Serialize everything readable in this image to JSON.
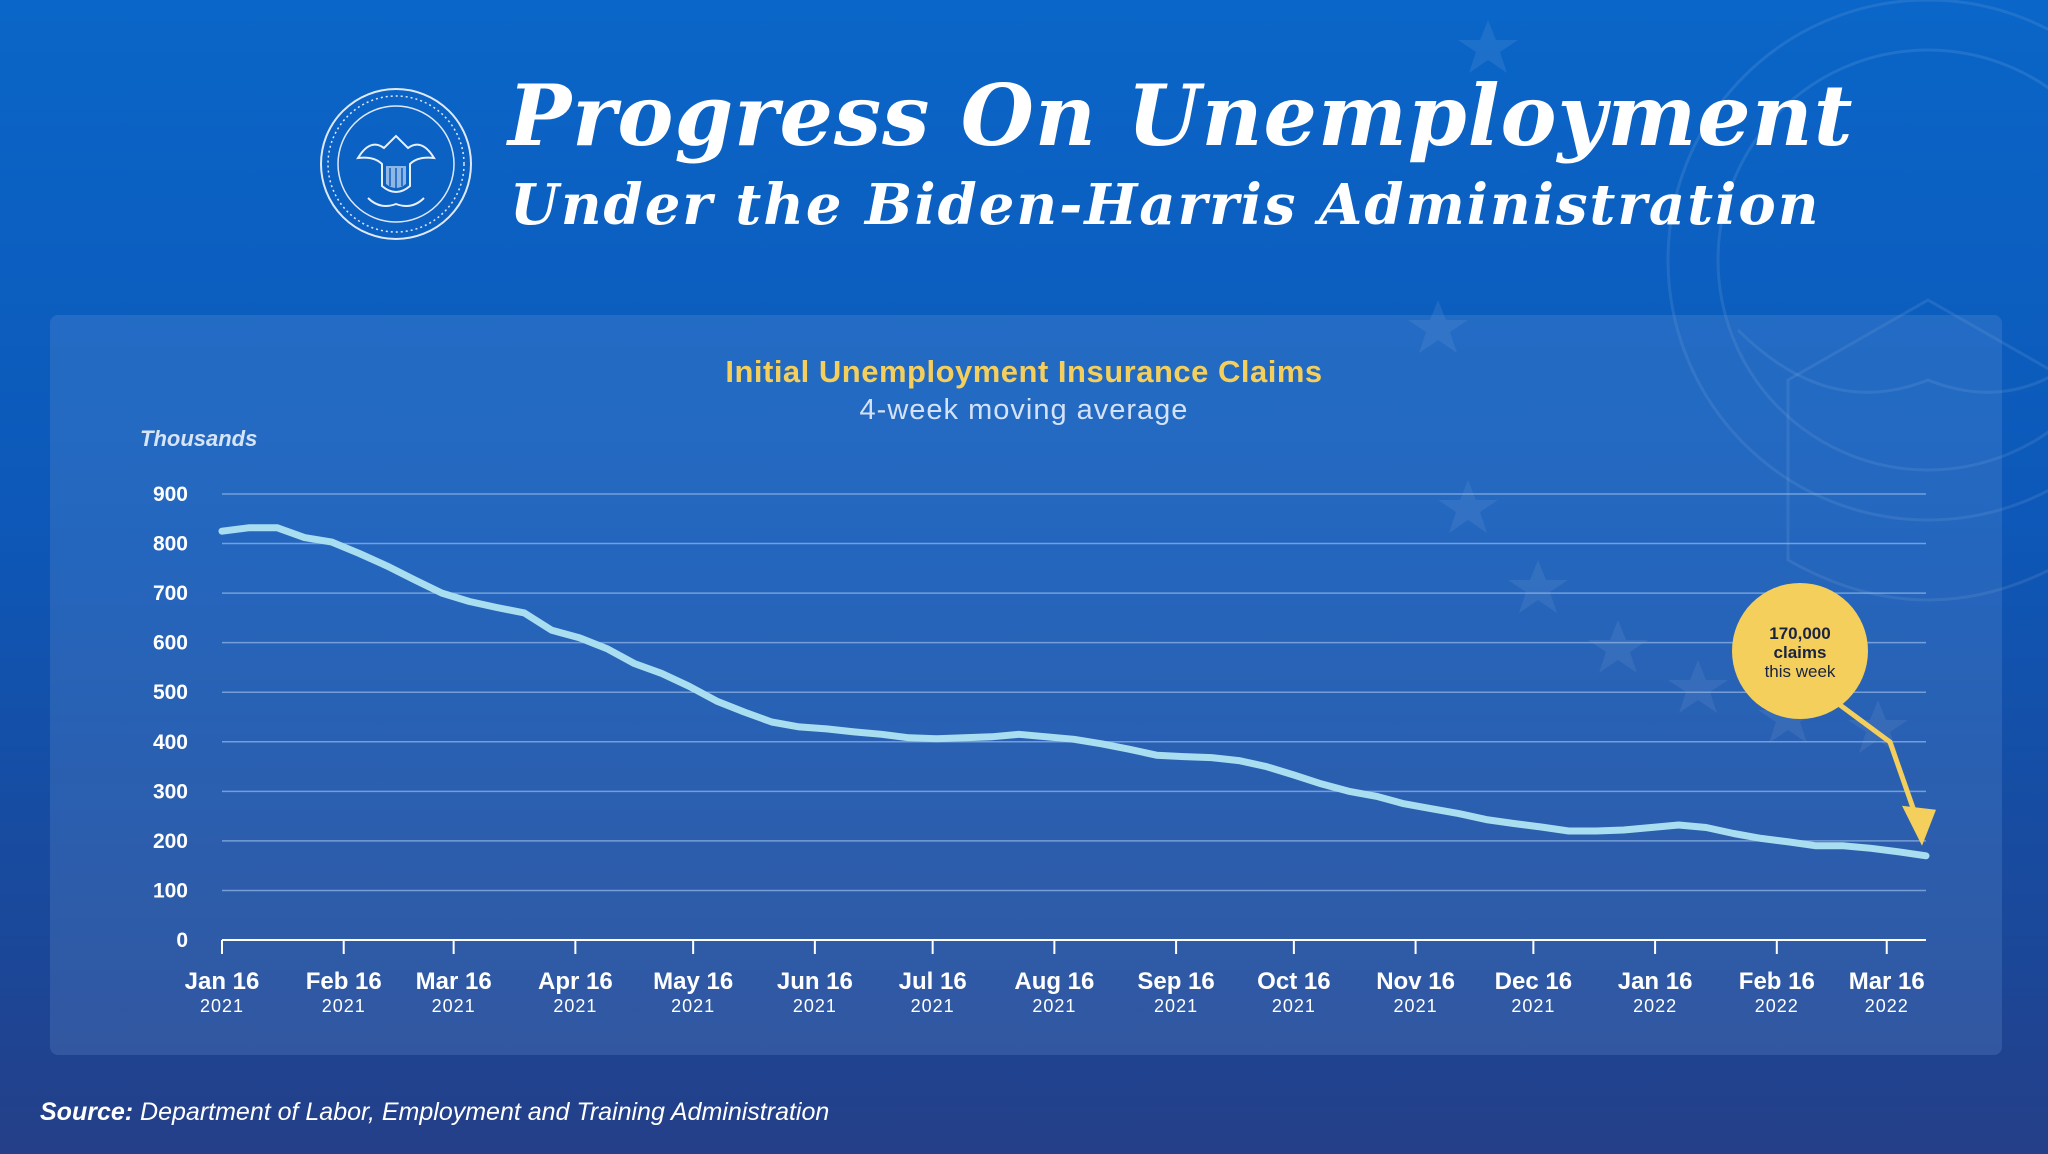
{
  "header": {
    "title": "Progress On Unemployment",
    "subtitle": "Under the Biden-Harris Administration"
  },
  "colors": {
    "line": "#a8def0",
    "accent": "#f4cf5c",
    "grid": "#8fb3e6"
  },
  "chart_data": {
    "type": "line",
    "title": "Initial Unemployment Insurance Claims",
    "subtitle": "4-week moving average",
    "ylabel": "Thousands",
    "ylim": [
      0,
      900
    ],
    "yticks": [
      "0",
      "100",
      "200",
      "300",
      "400",
      "500",
      "600",
      "700",
      "800",
      "900"
    ],
    "xticks": [
      {
        "date": "2021-01-16",
        "label": "Jan 16",
        "year": "2021"
      },
      {
        "date": "2021-02-16",
        "label": "Feb 16",
        "year": "2021"
      },
      {
        "date": "2021-03-16",
        "label": "Mar 16",
        "year": "2021"
      },
      {
        "date": "2021-04-16",
        "label": "Apr 16",
        "year": "2021"
      },
      {
        "date": "2021-05-16",
        "label": "May 16",
        "year": "2021"
      },
      {
        "date": "2021-06-16",
        "label": "Jun 16",
        "year": "2021"
      },
      {
        "date": "2021-07-16",
        "label": "Jul 16",
        "year": "2021"
      },
      {
        "date": "2021-08-16",
        "label": "Aug 16",
        "year": "2021"
      },
      {
        "date": "2021-09-16",
        "label": "Sep 16",
        "year": "2021"
      },
      {
        "date": "2021-10-16",
        "label": "Oct 16",
        "year": "2021"
      },
      {
        "date": "2021-11-16",
        "label": "Nov 16",
        "year": "2021"
      },
      {
        "date": "2021-12-16",
        "label": "Dec 16",
        "year": "2021"
      },
      {
        "date": "2022-01-16",
        "label": "Jan 16",
        "year": "2022"
      },
      {
        "date": "2022-02-16",
        "label": "Feb 16",
        "year": "2022"
      },
      {
        "date": "2022-03-16",
        "label": "Mar 16",
        "year": "2022"
      }
    ],
    "series": [
      {
        "x": [
          "2021-01-16",
          "2021-01-23",
          "2021-01-30",
          "2021-02-06",
          "2021-02-13",
          "2021-02-20",
          "2021-02-27",
          "2021-03-06",
          "2021-03-13",
          "2021-03-20",
          "2021-03-27",
          "2021-04-03",
          "2021-04-10",
          "2021-04-17",
          "2021-04-24",
          "2021-05-01",
          "2021-05-08",
          "2021-05-15",
          "2021-05-22",
          "2021-05-29",
          "2021-06-05",
          "2021-06-12",
          "2021-06-19",
          "2021-06-26",
          "2021-07-03",
          "2021-07-10",
          "2021-07-17",
          "2021-07-24",
          "2021-07-31",
          "2021-08-07",
          "2021-08-14",
          "2021-08-21",
          "2021-08-28",
          "2021-09-04",
          "2021-09-11",
          "2021-09-18",
          "2021-09-25",
          "2021-10-02",
          "2021-10-09",
          "2021-10-16",
          "2021-10-23",
          "2021-10-30",
          "2021-11-06",
          "2021-11-13",
          "2021-11-20",
          "2021-11-27",
          "2021-12-04",
          "2021-12-11",
          "2021-12-18",
          "2021-12-25",
          "2022-01-01",
          "2022-01-08",
          "2022-01-15",
          "2022-01-22",
          "2022-01-29",
          "2022-02-05",
          "2022-02-12",
          "2022-02-19",
          "2022-02-26",
          "2022-03-05",
          "2022-03-12",
          "2022-03-19",
          "2022-03-26"
        ],
        "values": [
          825,
          832,
          832,
          812,
          803,
          780,
          755,
          727,
          700,
          683,
          671,
          660,
          625,
          610,
          588,
          558,
          538,
          512,
          482,
          460,
          440,
          430,
          426,
          420,
          415,
          408,
          406,
          408,
          410,
          415,
          410,
          405,
          396,
          385,
          373,
          370,
          368,
          362,
          350,
          333,
          315,
          300,
          290,
          275,
          265,
          255,
          243,
          235,
          228,
          220,
          220,
          222,
          227,
          232,
          227,
          215,
          205,
          198,
          190,
          190,
          185,
          178,
          170
        ]
      }
    ],
    "annotation": {
      "value": "170,000",
      "line2": "claims",
      "line3": "this week"
    }
  },
  "source": {
    "label": "Source:",
    "text": "Department of Labor, Employment and Training Administration"
  }
}
